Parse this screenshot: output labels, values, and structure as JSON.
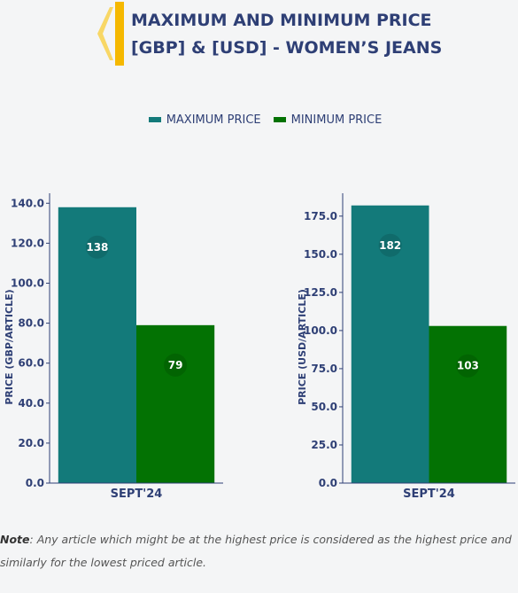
{
  "title": [
    "MAXIMUM AND MINIMUM PRICE",
    "[GBP] & [USD] - WOMEN’S JEANS"
  ],
  "note": {
    "label": "Note",
    "text": ": Any article which might be at the highest price is considered as the highest price and similarly for the lowest priced article."
  },
  "chart_data": [
    {
      "type": "bar",
      "y_label": "PRICE (GBP/ARTICLE)",
      "categories": [
        "SEPT'24"
      ],
      "series": [
        {
          "name": "MAXIMUM PRICE",
          "color": "#137a7a",
          "values": [
            138
          ]
        },
        {
          "name": "MINIMUM PRICE",
          "color": "#037203",
          "values": [
            79
          ]
        }
      ],
      "ylim": [
        0,
        145
      ],
      "yticks": [
        {
          "value": 0,
          "label": "0.0"
        },
        {
          "value": 20,
          "label": "20.0"
        },
        {
          "value": 40,
          "label": "40.0"
        },
        {
          "value": 60,
          "label": "60.0"
        },
        {
          "value": 80,
          "label": "80.0"
        },
        {
          "value": 100,
          "label": "100.0"
        },
        {
          "value": 120,
          "label": "120.0"
        },
        {
          "value": 140,
          "label": "140.0"
        }
      ]
    },
    {
      "type": "bar",
      "y_label": "PRICE (USD/ARTICLE)",
      "categories": [
        "SEPT'24"
      ],
      "series": [
        {
          "color": "#137a7a",
          "values": [
            182
          ]
        },
        {
          "color": "#037203",
          "values": [
            103
          ]
        }
      ],
      "ylim": [
        0,
        190
      ],
      "yticks": [
        {
          "value": 0,
          "label": "0.0"
        },
        {
          "value": 25,
          "label": "25.0"
        },
        {
          "value": 50,
          "label": "50.0"
        },
        {
          "value": 75,
          "label": "75.0"
        },
        {
          "value": 100,
          "label": "100.0"
        },
        {
          "value": 125,
          "label": "125.0"
        },
        {
          "value": 150,
          "label": "150.0"
        },
        {
          "value": 175,
          "label": "175.0"
        }
      ]
    }
  ]
}
